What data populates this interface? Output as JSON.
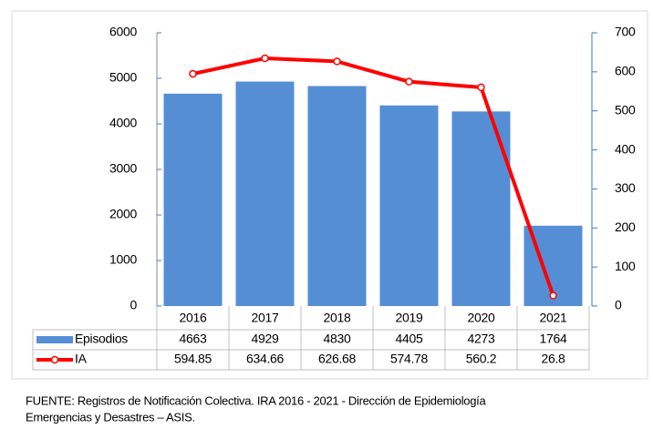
{
  "chart_data": {
    "type": "bar_line_table",
    "categories": [
      "2016",
      "2017",
      "2018",
      "2019",
      "2020",
      "2021"
    ],
    "series": [
      {
        "name": "Episodios",
        "type": "bar",
        "color": "#558ed5",
        "values": [
          4663,
          4929,
          4830,
          4405,
          4273,
          1764
        ]
      },
      {
        "name": "IA",
        "type": "line",
        "axis": "y2",
        "color": "#ff0000",
        "values": [
          594.85,
          634.66,
          626.68,
          574.78,
          560.2,
          26.8
        ]
      }
    ],
    "ylim": [
      0,
      6000
    ],
    "yticks": [
      0,
      1000,
      2000,
      3000,
      4000,
      5000,
      6000
    ],
    "y2lim": [
      0,
      700
    ],
    "y2ticks": [
      0,
      100,
      200,
      300,
      400,
      500,
      600,
      700
    ],
    "grid": false,
    "source": [
      "FUENTE:   Registros de Notificación Colectiva. IRA  2016 - 2021 - Dirección de Epidemiología",
      "Emergencias y Desastres – ASIS."
    ]
  }
}
